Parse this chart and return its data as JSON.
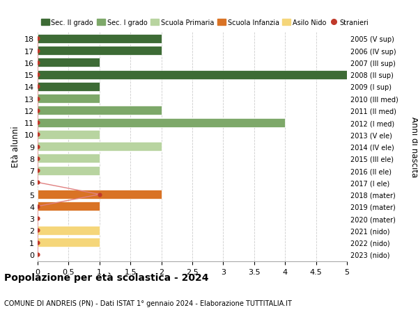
{
  "ages": [
    18,
    17,
    16,
    15,
    14,
    13,
    12,
    11,
    10,
    9,
    8,
    7,
    6,
    5,
    4,
    3,
    2,
    1,
    0
  ],
  "years": [
    "2005 (V sup)",
    "2006 (IV sup)",
    "2007 (III sup)",
    "2008 (II sup)",
    "2009 (I sup)",
    "2010 (III med)",
    "2011 (II med)",
    "2012 (I med)",
    "2013 (V ele)",
    "2014 (IV ele)",
    "2015 (III ele)",
    "2016 (II ele)",
    "2017 (I ele)",
    "2018 (mater)",
    "2019 (mater)",
    "2020 (mater)",
    "2021 (nido)",
    "2022 (nido)",
    "2023 (nido)"
  ],
  "bar_values": [
    2,
    2,
    1,
    5,
    1,
    1,
    2,
    4,
    1,
    2,
    1,
    1,
    0,
    2,
    1,
    0,
    1,
    1,
    0
  ],
  "bar_colors": [
    "#3d6b35",
    "#3d6b35",
    "#3d6b35",
    "#3d6b35",
    "#3d6b35",
    "#7da869",
    "#7da869",
    "#7da869",
    "#b8d4a0",
    "#b8d4a0",
    "#b8d4a0",
    "#b8d4a0",
    "#b8d4a0",
    "#d97325",
    "#d97325",
    "#d97325",
    "#f5d67a",
    "#f5d67a",
    "#f5d67a"
  ],
  "stranieri_values": [
    0,
    0,
    0,
    0,
    0,
    0,
    0,
    0,
    0,
    0,
    0,
    0,
    0,
    1,
    0,
    0,
    0,
    0,
    0
  ],
  "stranieri_color": "#c0392b",
  "stranieri_line_color": "#e08080",
  "xlim": [
    0,
    5.0
  ],
  "ylabel": "Età alunni",
  "ylabel2": "Anni di nascita",
  "title": "Popolazione per età scolastica - 2024",
  "subtitle": "COMUNE DI ANDREIS (PN) - Dati ISTAT 1° gennaio 2024 - Elaborazione TUTTITALIA.IT",
  "legend_labels": [
    "Sec. II grado",
    "Sec. I grado",
    "Scuola Primaria",
    "Scuola Infanzia",
    "Asilo Nido",
    "Stranieri"
  ],
  "legend_colors": [
    "#3d6b35",
    "#7da869",
    "#b8d4a0",
    "#d97325",
    "#f5d67a",
    "#c0392b"
  ],
  "bg_color": "#ffffff",
  "grid_color": "#cccccc",
  "bar_height": 0.75,
  "xticks": [
    0,
    0.5,
    1.0,
    1.5,
    2.0,
    2.5,
    3.0,
    3.5,
    4.0,
    4.5,
    5.0
  ]
}
